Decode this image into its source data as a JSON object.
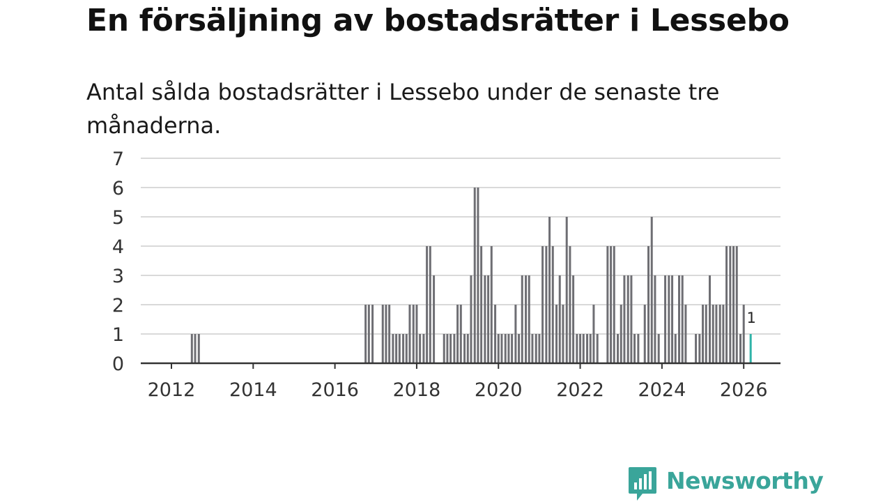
{
  "title": "En försäljning av bostadsrätter i Lessebo",
  "subtitle": "Antal sålda bostadsrätter i Lessebo under de senaste tre månaderna.",
  "brand": {
    "name": "Newsworthy",
    "color": "#3aa59a"
  },
  "colors": {
    "bar": "#6e6e73",
    "highlight": "#2fb3a8",
    "grid": "#d9d9d9",
    "axis": "#333333"
  },
  "chart_data": {
    "type": "bar",
    "title": "En försäljning av bostadsrätter i Lessebo",
    "xlabel": "",
    "ylabel": "",
    "ylim": [
      0,
      7
    ],
    "yticks": [
      0,
      1,
      2,
      3,
      4,
      5,
      6,
      7
    ],
    "xlim": [
      2011.25,
      2026.9
    ],
    "xticks": [
      "2012",
      "2014",
      "2016",
      "2018",
      "2020",
      "2022",
      "2024",
      "2026"
    ],
    "grid": true,
    "bar_width_years": 0.0667,
    "highlight_label": "1",
    "points": [
      {
        "x": 2012.5,
        "y": 1
      },
      {
        "x": 2012.58,
        "y": 1
      },
      {
        "x": 2012.67,
        "y": 1
      },
      {
        "x": 2016.75,
        "y": 2
      },
      {
        "x": 2016.83,
        "y": 2
      },
      {
        "x": 2016.92,
        "y": 2
      },
      {
        "x": 2017.17,
        "y": 2
      },
      {
        "x": 2017.25,
        "y": 2
      },
      {
        "x": 2017.33,
        "y": 2
      },
      {
        "x": 2017.42,
        "y": 1
      },
      {
        "x": 2017.5,
        "y": 1
      },
      {
        "x": 2017.58,
        "y": 1
      },
      {
        "x": 2017.67,
        "y": 1
      },
      {
        "x": 2017.75,
        "y": 1
      },
      {
        "x": 2017.83,
        "y": 2
      },
      {
        "x": 2017.92,
        "y": 2
      },
      {
        "x": 2018.0,
        "y": 2
      },
      {
        "x": 2018.08,
        "y": 1
      },
      {
        "x": 2018.17,
        "y": 1
      },
      {
        "x": 2018.25,
        "y": 4
      },
      {
        "x": 2018.33,
        "y": 4
      },
      {
        "x": 2018.42,
        "y": 3
      },
      {
        "x": 2018.67,
        "y": 1
      },
      {
        "x": 2018.75,
        "y": 1
      },
      {
        "x": 2018.83,
        "y": 1
      },
      {
        "x": 2018.92,
        "y": 1
      },
      {
        "x": 2019.0,
        "y": 2
      },
      {
        "x": 2019.08,
        "y": 2
      },
      {
        "x": 2019.17,
        "y": 1
      },
      {
        "x": 2019.25,
        "y": 1
      },
      {
        "x": 2019.33,
        "y": 3
      },
      {
        "x": 2019.42,
        "y": 6
      },
      {
        "x": 2019.5,
        "y": 6
      },
      {
        "x": 2019.58,
        "y": 4
      },
      {
        "x": 2019.67,
        "y": 3
      },
      {
        "x": 2019.75,
        "y": 3
      },
      {
        "x": 2019.83,
        "y": 4
      },
      {
        "x": 2019.92,
        "y": 2
      },
      {
        "x": 2020.0,
        "y": 1
      },
      {
        "x": 2020.08,
        "y": 1
      },
      {
        "x": 2020.17,
        "y": 1
      },
      {
        "x": 2020.25,
        "y": 1
      },
      {
        "x": 2020.33,
        "y": 1
      },
      {
        "x": 2020.42,
        "y": 2
      },
      {
        "x": 2020.5,
        "y": 1
      },
      {
        "x": 2020.58,
        "y": 3
      },
      {
        "x": 2020.67,
        "y": 3
      },
      {
        "x": 2020.75,
        "y": 3
      },
      {
        "x": 2020.83,
        "y": 1
      },
      {
        "x": 2020.92,
        "y": 1
      },
      {
        "x": 2021.0,
        "y": 1
      },
      {
        "x": 2021.08,
        "y": 4
      },
      {
        "x": 2021.17,
        "y": 4
      },
      {
        "x": 2021.25,
        "y": 5
      },
      {
        "x": 2021.33,
        "y": 4
      },
      {
        "x": 2021.42,
        "y": 2
      },
      {
        "x": 2021.5,
        "y": 3
      },
      {
        "x": 2021.58,
        "y": 2
      },
      {
        "x": 2021.67,
        "y": 5
      },
      {
        "x": 2021.75,
        "y": 4
      },
      {
        "x": 2021.83,
        "y": 3
      },
      {
        "x": 2021.92,
        "y": 1
      },
      {
        "x": 2022.0,
        "y": 1
      },
      {
        "x": 2022.08,
        "y": 1
      },
      {
        "x": 2022.17,
        "y": 1
      },
      {
        "x": 2022.25,
        "y": 1
      },
      {
        "x": 2022.33,
        "y": 2
      },
      {
        "x": 2022.42,
        "y": 1
      },
      {
        "x": 2022.67,
        "y": 4
      },
      {
        "x": 2022.75,
        "y": 4
      },
      {
        "x": 2022.83,
        "y": 4
      },
      {
        "x": 2022.92,
        "y": 1
      },
      {
        "x": 2023.0,
        "y": 2
      },
      {
        "x": 2023.08,
        "y": 3
      },
      {
        "x": 2023.17,
        "y": 3
      },
      {
        "x": 2023.25,
        "y": 3
      },
      {
        "x": 2023.33,
        "y": 1
      },
      {
        "x": 2023.42,
        "y": 1
      },
      {
        "x": 2023.58,
        "y": 2
      },
      {
        "x": 2023.67,
        "y": 4
      },
      {
        "x": 2023.75,
        "y": 5
      },
      {
        "x": 2023.83,
        "y": 3
      },
      {
        "x": 2023.92,
        "y": 1
      },
      {
        "x": 2024.08,
        "y": 3
      },
      {
        "x": 2024.17,
        "y": 3
      },
      {
        "x": 2024.25,
        "y": 3
      },
      {
        "x": 2024.33,
        "y": 1
      },
      {
        "x": 2024.42,
        "y": 3
      },
      {
        "x": 2024.5,
        "y": 3
      },
      {
        "x": 2024.58,
        "y": 2
      },
      {
        "x": 2024.83,
        "y": 1
      },
      {
        "x": 2024.92,
        "y": 1
      },
      {
        "x": 2025.0,
        "y": 2
      },
      {
        "x": 2025.08,
        "y": 2
      },
      {
        "x": 2025.17,
        "y": 3
      },
      {
        "x": 2025.25,
        "y": 2
      },
      {
        "x": 2025.33,
        "y": 2
      },
      {
        "x": 2025.42,
        "y": 2
      },
      {
        "x": 2025.5,
        "y": 2
      },
      {
        "x": 2025.58,
        "y": 4
      },
      {
        "x": 2025.67,
        "y": 4
      },
      {
        "x": 2025.75,
        "y": 4
      },
      {
        "x": 2025.83,
        "y": 4
      },
      {
        "x": 2025.92,
        "y": 1
      },
      {
        "x": 2026.0,
        "y": 2
      },
      {
        "x": 2026.17,
        "y": 1,
        "highlight": true
      }
    ]
  }
}
